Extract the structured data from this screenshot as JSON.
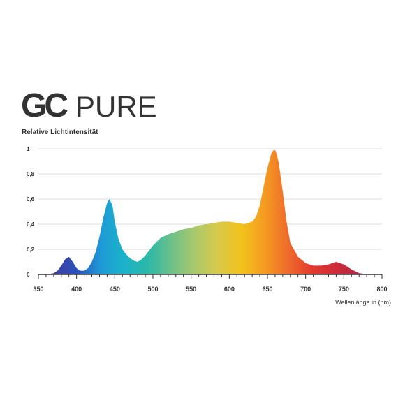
{
  "logo": {
    "mark": "GC",
    "word": "PURE",
    "color": "#333333"
  },
  "chart_data": {
    "type": "area",
    "ylabel": "Relative Lichtintensität",
    "xlabel": "Wellenlänge in (nm)",
    "xlim": [
      350,
      800
    ],
    "ylim": [
      0,
      1
    ],
    "x_ticks": [
      "350",
      "400",
      "450",
      "500",
      "550",
      "600",
      "650",
      "700",
      "750",
      "800"
    ],
    "y_ticks": [
      "0",
      "0,2",
      "0,4",
      "0,6",
      "0,8",
      "1"
    ],
    "y_tick_values": [
      0,
      0.2,
      0.4,
      0.6,
      0.8,
      1
    ],
    "grid": true,
    "x": [
      360,
      370,
      375,
      380,
      385,
      390,
      395,
      400,
      405,
      410,
      415,
      420,
      425,
      430,
      435,
      440,
      443,
      447,
      450,
      455,
      460,
      465,
      470,
      475,
      480,
      485,
      490,
      495,
      500,
      505,
      510,
      520,
      530,
      540,
      550,
      560,
      570,
      580,
      590,
      600,
      610,
      620,
      630,
      635,
      640,
      645,
      650,
      655,
      658,
      660,
      662,
      665,
      670,
      675,
      680,
      690,
      700,
      710,
      720,
      730,
      740,
      750,
      760,
      770,
      780,
      790
    ],
    "values": [
      0,
      0.01,
      0.03,
      0.07,
      0.12,
      0.14,
      0.1,
      0.05,
      0.03,
      0.03,
      0.05,
      0.1,
      0.18,
      0.3,
      0.45,
      0.57,
      0.6,
      0.55,
      0.42,
      0.28,
      0.2,
      0.16,
      0.13,
      0.11,
      0.1,
      0.12,
      0.15,
      0.19,
      0.23,
      0.26,
      0.29,
      0.32,
      0.34,
      0.36,
      0.37,
      0.39,
      0.4,
      0.41,
      0.42,
      0.42,
      0.41,
      0.4,
      0.42,
      0.46,
      0.55,
      0.7,
      0.85,
      0.96,
      0.99,
      0.99,
      0.96,
      0.88,
      0.66,
      0.42,
      0.25,
      0.14,
      0.09,
      0.07,
      0.07,
      0.08,
      0.1,
      0.08,
      0.04,
      0.01,
      0.003,
      0
    ],
    "series_colors": [
      "#3f3e9c",
      "#2a52be",
      "#1e9ad6",
      "#1bb3c9",
      "#2bb8a8",
      "#6cc08a",
      "#a9c96c",
      "#d8c94a",
      "#f2c21b",
      "#f59a22",
      "#ee6a2b",
      "#e33a2f",
      "#cf2b3a",
      "#b22645"
    ]
  }
}
